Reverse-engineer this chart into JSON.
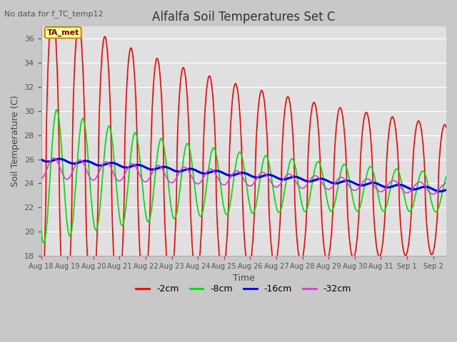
{
  "title": "Alfalfa Soil Temperatures Set C",
  "top_left_note": "No data for f_TC_temp12",
  "ylabel": "Soil Temperature (C)",
  "xlabel": "Time",
  "ylim": [
    18,
    37
  ],
  "yticks": [
    18,
    20,
    22,
    24,
    26,
    28,
    30,
    32,
    34,
    36
  ],
  "fig_facecolor": "#c8c8c8",
  "plot_facecolor": "#e0e0e0",
  "colors": {
    "2cm": "#ff0000",
    "8cm": "#00dd00",
    "16cm": "#0000ff",
    "32cm": "#cc44cc"
  },
  "legend_labels": [
    "-2cm",
    "-8cm",
    "-16cm",
    "-32cm"
  ],
  "ta_met_label": "TA_met",
  "ta_met_facecolor": "#ffff99",
  "ta_met_edgecolor": "#cc8800",
  "tick_labels": [
    "Aug 18",
    "Aug 19",
    "Aug 20",
    "Aug 21",
    "Aug 22",
    "Aug 23",
    "Aug 24",
    "Aug 25",
    "Aug 26",
    "Aug 27",
    "Aug 28",
    "Aug 29",
    "Aug 30",
    "Aug 31",
    "Sep 1",
    "Sep 2"
  ],
  "num_days": 15,
  "xlim_end": 15.5,
  "line_widths": {
    "2cm": 1.2,
    "8cm": 1.2,
    "16cm": 2.2,
    "32cm": 1.2
  }
}
